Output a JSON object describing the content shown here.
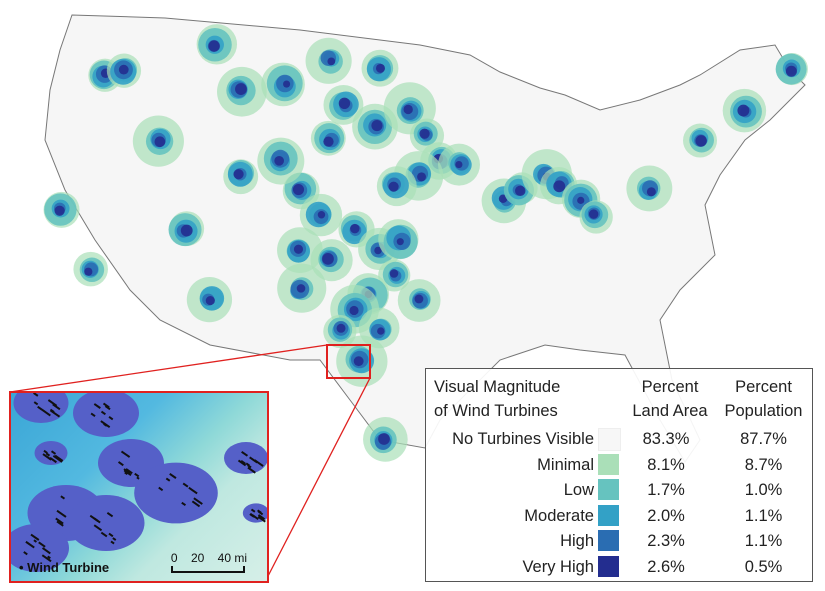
{
  "legend": {
    "title_line1": "Visual Magnitude",
    "title_line2": "of Wind Turbines",
    "col1_line1": "Percent",
    "col1_line2": "Land Area",
    "col2_line1": "Percent",
    "col2_line2": "Population",
    "rows": [
      {
        "label": "No Turbines Visible",
        "color": "#f7f7f7",
        "land": "83.3%",
        "pop": "87.7%"
      },
      {
        "label": "Minimal",
        "color": "#aadfb8",
        "land": "8.1%",
        "pop": "8.7%"
      },
      {
        "label": "Low",
        "color": "#66c3bf",
        "land": "1.7%",
        "pop": "1.0%"
      },
      {
        "label": "Moderate",
        "color": "#33a1c6",
        "land": "2.0%",
        "pop": "1.1%"
      },
      {
        "label": "High",
        "color": "#2a6db2",
        "land": "2.3%",
        "pop": "1.1%"
      },
      {
        "label": "Very High",
        "color": "#232d8f",
        "land": "2.6%",
        "pop": "0.5%"
      }
    ]
  },
  "inset": {
    "marker_label": "Wind Turbine",
    "scale": {
      "t0": "0",
      "t1": "20",
      "t2": "40 mi"
    },
    "highlight_color": "#e0211f"
  }
}
